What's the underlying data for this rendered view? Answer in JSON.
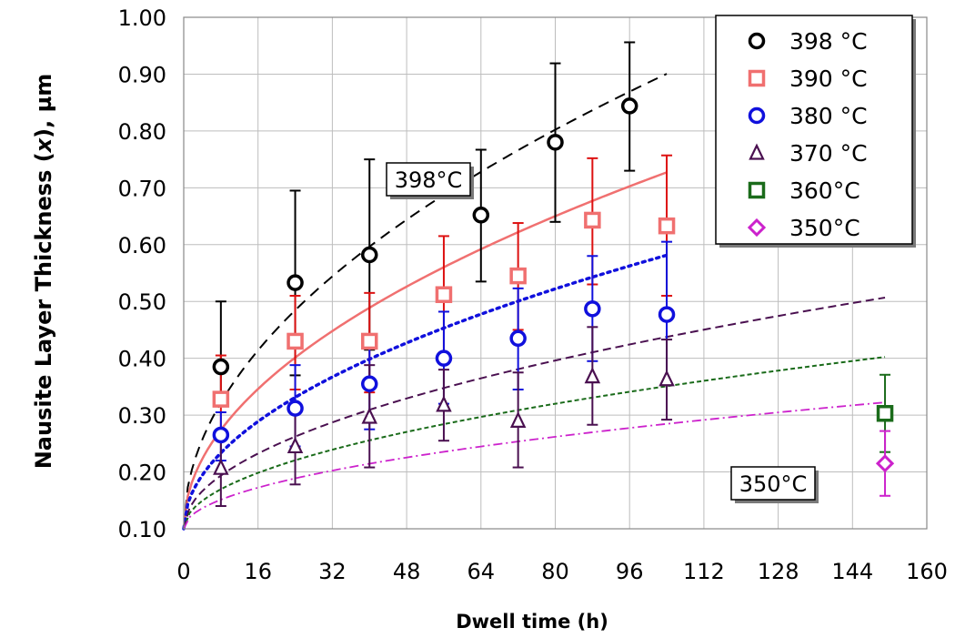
{
  "chart_data": {
    "type": "scatter",
    "title": "",
    "xlabel": "Dwell time (h)",
    "ylabel_prefix": "Nausite Layer Thickness (",
    "ylabel_var": "x",
    "ylabel_suffix": "), µm",
    "xlim": [
      0,
      160
    ],
    "ylim": [
      0.1,
      1.0
    ],
    "x_ticks": [
      0,
      16,
      32,
      48,
      64,
      80,
      96,
      112,
      128,
      144,
      160
    ],
    "y_ticks": [
      0.1,
      0.2,
      0.3,
      0.4,
      0.5,
      0.6,
      0.7,
      0.8,
      0.9,
      1.0
    ],
    "y_tick_labels": [
      "0.10",
      "0.20",
      "0.30",
      "0.40",
      "0.50",
      "0.60",
      "0.70",
      "0.80",
      "0.90",
      "1.00"
    ],
    "grid": true,
    "legend_position": "top-right",
    "series": [
      {
        "name": "398 °C",
        "marker": "circle",
        "color": "#000000",
        "points": [
          {
            "x": 8,
            "y": 0.385,
            "err_low": 0.32,
            "err_high": 0.5
          },
          {
            "x": 24,
            "y": 0.533,
            "err_low": 0.37,
            "err_high": 0.695
          },
          {
            "x": 40,
            "y": 0.582,
            "err_low": 0.415,
            "err_high": 0.75
          },
          {
            "x": 64,
            "y": 0.652,
            "err_low": 0.535,
            "err_high": 0.767
          },
          {
            "x": 80,
            "y": 0.78,
            "err_low": 0.64,
            "err_high": 0.919
          },
          {
            "x": 96,
            "y": 0.844,
            "err_low": 0.73,
            "err_high": 0.956
          }
        ]
      },
      {
        "name": "390 °C",
        "marker": "square",
        "color": "#f07070",
        "error_color": "#dd1111",
        "points": [
          {
            "x": 8,
            "y": 0.328,
            "err_low": 0.265,
            "err_high": 0.405
          },
          {
            "x": 24,
            "y": 0.43,
            "err_low": 0.345,
            "err_high": 0.51
          },
          {
            "x": 40,
            "y": 0.43,
            "err_low": 0.34,
            "err_high": 0.515
          },
          {
            "x": 56,
            "y": 0.512,
            "err_low": 0.41,
            "err_high": 0.615
          },
          {
            "x": 72,
            "y": 0.545,
            "err_low": 0.45,
            "err_high": 0.638
          },
          {
            "x": 88,
            "y": 0.643,
            "err_low": 0.53,
            "err_high": 0.752
          },
          {
            "x": 104,
            "y": 0.633,
            "err_low": 0.51,
            "err_high": 0.757
          }
        ]
      },
      {
        "name": "380 °C",
        "marker": "circle",
        "color": "#1010dd",
        "points": [
          {
            "x": 8,
            "y": 0.265,
            "err_low": 0.22,
            "err_high": 0.305
          },
          {
            "x": 24,
            "y": 0.312,
            "err_low": 0.245,
            "err_high": 0.388
          },
          {
            "x": 40,
            "y": 0.355,
            "err_low": 0.275,
            "err_high": 0.435
          },
          {
            "x": 56,
            "y": 0.4,
            "err_low": 0.32,
            "err_high": 0.482
          },
          {
            "x": 72,
            "y": 0.435,
            "err_low": 0.345,
            "err_high": 0.523
          },
          {
            "x": 88,
            "y": 0.487,
            "err_low": 0.395,
            "err_high": 0.58
          },
          {
            "x": 104,
            "y": 0.477,
            "err_low": 0.355,
            "err_high": 0.605
          }
        ]
      },
      {
        "name": "370 °C",
        "marker": "triangle",
        "color": "#4a1050",
        "points": [
          {
            "x": 8,
            "y": 0.207,
            "err_low": 0.14,
            "err_high": 0.265
          },
          {
            "x": 24,
            "y": 0.245,
            "err_low": 0.178,
            "err_high": 0.315
          },
          {
            "x": 40,
            "y": 0.297,
            "err_low": 0.208,
            "err_high": 0.388
          },
          {
            "x": 56,
            "y": 0.318,
            "err_low": 0.255,
            "err_high": 0.38
          },
          {
            "x": 72,
            "y": 0.29,
            "err_low": 0.208,
            "err_high": 0.375
          },
          {
            "x": 88,
            "y": 0.368,
            "err_low": 0.283,
            "err_high": 0.455
          },
          {
            "x": 104,
            "y": 0.363,
            "err_low": 0.292,
            "err_high": 0.433
          }
        ]
      },
      {
        "name": "360°C",
        "marker": "square",
        "color": "#1a6b1a",
        "points": [
          {
            "x": 151,
            "y": 0.303,
            "err_low": 0.235,
            "err_high": 0.371
          }
        ]
      },
      {
        "name": "350°C",
        "marker": "diamond",
        "color": "#cc22cc",
        "points": [
          {
            "x": 151,
            "y": 0.215,
            "err_low": 0.158,
            "err_high": 0.272
          }
        ]
      }
    ],
    "fits": [
      {
        "series": "398 °C",
        "color": "#000000",
        "dash": "12,8",
        "width": 2,
        "x_max": 104,
        "k": 0.0785
      },
      {
        "series": "390 °C",
        "color": "#f07070",
        "dash": "",
        "width": 2.5,
        "x_max": 104,
        "k": 0.0615
      },
      {
        "series": "380 °C",
        "color": "#1010dd",
        "dash": "3,5",
        "width": 3.5,
        "x_max": 104,
        "k": 0.0472
      },
      {
        "series": "370 °C",
        "color": "#4a1050",
        "dash": "9,5",
        "width": 2,
        "x_max": 151,
        "k": 0.0331
      },
      {
        "series": "360°C",
        "color": "#1a6b1a",
        "dash": "5,3",
        "width": 2,
        "x_max": 151,
        "k": 0.0246
      },
      {
        "series": "350°C",
        "color": "#cc22cc",
        "dash": "10,4,2,4",
        "width": 1.8,
        "x_max": 151,
        "k": 0.0181
      }
    ],
    "annotations": [
      {
        "text": "398°C"
      },
      {
        "text": "350°C"
      }
    ]
  }
}
